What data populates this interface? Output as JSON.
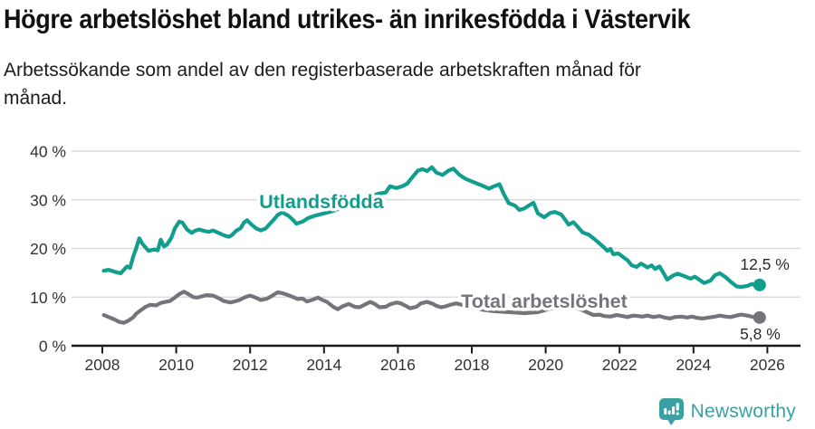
{
  "header": {
    "title": "Högre arbetslöshet bland utrikes- än inrikesfödda i Västervik",
    "subtitle_lines": [
      "Arbetssökande som andel av den registerbaserade arbetskraften månad för",
      "månad."
    ]
  },
  "chart_data": {
    "type": "line",
    "title": "Högre arbetslöshet bland utrikes- än inrikesfödda i Västervik",
    "subtitle": "Arbetssökande som andel av den registerbaserade arbetskraften månad för månad.",
    "unit": "%",
    "grid": true,
    "legend_position": "inline-labels",
    "xlim": [
      2007.2,
      2026.9
    ],
    "ylim": [
      0,
      40
    ],
    "x_ticks": [
      2008,
      2010,
      2012,
      2014,
      2016,
      2018,
      2020,
      2022,
      2024,
      2026
    ],
    "y_ticks": [
      0,
      10,
      20,
      30,
      40
    ],
    "y_tick_suffix": " %",
    "colors": {
      "axis": "#191919",
      "gridline": "#dcdcdc",
      "tick_text": "#333333",
      "annotation_text": "#2b2b2b"
    },
    "series": [
      {
        "name": "Utlandsfödda",
        "color": "#119e8d",
        "end_value_label": "12,5 %",
        "label_anchor": {
          "x": 2013.93,
          "y": 29.8
        },
        "points": [
          [
            2008.04,
            15.4
          ],
          [
            2008.17,
            15.6
          ],
          [
            2008.33,
            15.2
          ],
          [
            2008.5,
            14.9
          ],
          [
            2008.58,
            15.6
          ],
          [
            2008.67,
            16.3
          ],
          [
            2008.75,
            16.0
          ],
          [
            2008.83,
            18.2
          ],
          [
            2008.92,
            20.1
          ],
          [
            2009.0,
            22.1
          ],
          [
            2009.08,
            21.0
          ],
          [
            2009.25,
            19.5
          ],
          [
            2009.42,
            19.8
          ],
          [
            2009.5,
            19.6
          ],
          [
            2009.58,
            21.8
          ],
          [
            2009.67,
            20.4
          ],
          [
            2009.75,
            20.8
          ],
          [
            2009.87,
            22.2
          ],
          [
            2009.96,
            24.1
          ],
          [
            2010.08,
            25.5
          ],
          [
            2010.17,
            25.3
          ],
          [
            2010.29,
            23.9
          ],
          [
            2010.42,
            23.2
          ],
          [
            2010.5,
            23.6
          ],
          [
            2010.62,
            23.9
          ],
          [
            2010.75,
            23.6
          ],
          [
            2010.87,
            23.4
          ],
          [
            2011.0,
            23.7
          ],
          [
            2011.17,
            23.1
          ],
          [
            2011.29,
            22.7
          ],
          [
            2011.42,
            22.4
          ],
          [
            2011.5,
            22.7
          ],
          [
            2011.62,
            23.6
          ],
          [
            2011.75,
            24.2
          ],
          [
            2011.83,
            25.3
          ],
          [
            2011.92,
            25.8
          ],
          [
            2012.04,
            24.9
          ],
          [
            2012.17,
            24.1
          ],
          [
            2012.29,
            23.7
          ],
          [
            2012.42,
            24.1
          ],
          [
            2012.54,
            25.1
          ],
          [
            2012.65,
            26.0
          ],
          [
            2012.75,
            26.9
          ],
          [
            2012.87,
            27.4
          ],
          [
            2013.04,
            26.7
          ],
          [
            2013.17,
            25.8
          ],
          [
            2013.25,
            25.1
          ],
          [
            2013.42,
            25.5
          ],
          [
            2013.54,
            26.1
          ],
          [
            2013.62,
            26.4
          ],
          [
            2013.79,
            26.8
          ],
          [
            2014.0,
            27.2
          ],
          [
            2014.25,
            27.7
          ],
          [
            2014.5,
            28.5
          ],
          [
            2014.75,
            29.2
          ],
          [
            2015.0,
            30.0
          ],
          [
            2015.25,
            30.7
          ],
          [
            2015.5,
            31.3
          ],
          [
            2015.67,
            31.5
          ],
          [
            2015.79,
            32.8
          ],
          [
            2015.96,
            32.4
          ],
          [
            2016.12,
            32.8
          ],
          [
            2016.25,
            33.3
          ],
          [
            2016.42,
            34.9
          ],
          [
            2016.54,
            36.0
          ],
          [
            2016.67,
            36.3
          ],
          [
            2016.79,
            35.9
          ],
          [
            2016.92,
            36.7
          ],
          [
            2017.04,
            35.6
          ],
          [
            2017.21,
            35.1
          ],
          [
            2017.37,
            36.0
          ],
          [
            2017.5,
            36.4
          ],
          [
            2017.67,
            35.1
          ],
          [
            2017.83,
            34.3
          ],
          [
            2017.96,
            33.9
          ],
          [
            2018.12,
            33.4
          ],
          [
            2018.29,
            32.9
          ],
          [
            2018.46,
            32.3
          ],
          [
            2018.58,
            32.7
          ],
          [
            2018.75,
            33.2
          ],
          [
            2018.87,
            31.1
          ],
          [
            2019.0,
            29.3
          ],
          [
            2019.17,
            28.8
          ],
          [
            2019.29,
            27.9
          ],
          [
            2019.42,
            28.2
          ],
          [
            2019.54,
            28.8
          ],
          [
            2019.67,
            29.4
          ],
          [
            2019.79,
            27.2
          ],
          [
            2019.96,
            26.4
          ],
          [
            2020.12,
            27.3
          ],
          [
            2020.25,
            27.5
          ],
          [
            2020.42,
            27.0
          ],
          [
            2020.5,
            26.2
          ],
          [
            2020.62,
            24.9
          ],
          [
            2020.75,
            25.4
          ],
          [
            2020.87,
            24.4
          ],
          [
            2021.0,
            23.3
          ],
          [
            2021.17,
            22.8
          ],
          [
            2021.29,
            22.1
          ],
          [
            2021.46,
            21.0
          ],
          [
            2021.58,
            20.2
          ],
          [
            2021.67,
            19.5
          ],
          [
            2021.75,
            19.9
          ],
          [
            2021.83,
            18.8
          ],
          [
            2021.96,
            19.0
          ],
          [
            2022.08,
            18.3
          ],
          [
            2022.21,
            17.6
          ],
          [
            2022.33,
            16.5
          ],
          [
            2022.46,
            16.2
          ],
          [
            2022.58,
            16.9
          ],
          [
            2022.67,
            16.5
          ],
          [
            2022.75,
            16.1
          ],
          [
            2022.87,
            16.5
          ],
          [
            2022.96,
            15.8
          ],
          [
            2023.08,
            16.3
          ],
          [
            2023.17,
            15.2
          ],
          [
            2023.29,
            13.6
          ],
          [
            2023.46,
            14.5
          ],
          [
            2023.58,
            14.8
          ],
          [
            2023.75,
            14.3
          ],
          [
            2023.92,
            13.8
          ],
          [
            2024.04,
            14.2
          ],
          [
            2024.17,
            13.5
          ],
          [
            2024.29,
            12.9
          ],
          [
            2024.46,
            13.4
          ],
          [
            2024.58,
            14.5
          ],
          [
            2024.71,
            14.9
          ],
          [
            2024.87,
            14.1
          ],
          [
            2025.0,
            13.2
          ],
          [
            2025.17,
            12.2
          ],
          [
            2025.29,
            12.1
          ],
          [
            2025.46,
            12.3
          ],
          [
            2025.58,
            12.7
          ],
          [
            2025.67,
            12.4
          ],
          [
            2025.79,
            12.5
          ]
        ]
      },
      {
        "name": "Total arbetslöshet",
        "color": "#75747a",
        "end_value_label": "5,8 %",
        "label_anchor": {
          "x": 2019.96,
          "y": 9.3
        },
        "points": [
          [
            2008.04,
            6.3
          ],
          [
            2008.17,
            5.9
          ],
          [
            2008.33,
            5.4
          ],
          [
            2008.46,
            4.9
          ],
          [
            2008.58,
            4.7
          ],
          [
            2008.71,
            5.2
          ],
          [
            2008.83,
            5.8
          ],
          [
            2008.92,
            6.6
          ],
          [
            2009.04,
            7.3
          ],
          [
            2009.17,
            8.0
          ],
          [
            2009.29,
            8.4
          ],
          [
            2009.46,
            8.3
          ],
          [
            2009.58,
            8.8
          ],
          [
            2009.71,
            9.0
          ],
          [
            2009.83,
            9.2
          ],
          [
            2009.96,
            9.9
          ],
          [
            2010.08,
            10.6
          ],
          [
            2010.21,
            11.1
          ],
          [
            2010.33,
            10.6
          ],
          [
            2010.46,
            10.0
          ],
          [
            2010.58,
            9.9
          ],
          [
            2010.71,
            10.2
          ],
          [
            2010.83,
            10.4
          ],
          [
            2011.0,
            10.3
          ],
          [
            2011.17,
            9.7
          ],
          [
            2011.29,
            9.2
          ],
          [
            2011.46,
            8.9
          ],
          [
            2011.58,
            9.1
          ],
          [
            2011.71,
            9.4
          ],
          [
            2011.87,
            10.0
          ],
          [
            2012.0,
            10.3
          ],
          [
            2012.12,
            10.0
          ],
          [
            2012.29,
            9.4
          ],
          [
            2012.46,
            9.7
          ],
          [
            2012.58,
            10.2
          ],
          [
            2012.75,
            11.0
          ],
          [
            2012.87,
            10.8
          ],
          [
            2013.0,
            10.5
          ],
          [
            2013.17,
            10.0
          ],
          [
            2013.29,
            9.6
          ],
          [
            2013.42,
            9.7
          ],
          [
            2013.54,
            9.1
          ],
          [
            2013.71,
            9.5
          ],
          [
            2013.83,
            9.9
          ],
          [
            2013.96,
            9.4
          ],
          [
            2014.08,
            9.0
          ],
          [
            2014.25,
            8.0
          ],
          [
            2014.37,
            7.5
          ],
          [
            2014.5,
            8.1
          ],
          [
            2014.67,
            8.6
          ],
          [
            2014.83,
            8.0
          ],
          [
            2014.96,
            7.9
          ],
          [
            2015.12,
            8.5
          ],
          [
            2015.25,
            9.0
          ],
          [
            2015.37,
            8.6
          ],
          [
            2015.5,
            7.9
          ],
          [
            2015.67,
            8.0
          ],
          [
            2015.79,
            8.5
          ],
          [
            2015.96,
            8.9
          ],
          [
            2016.08,
            8.7
          ],
          [
            2016.21,
            8.2
          ],
          [
            2016.33,
            7.7
          ],
          [
            2016.5,
            8.0
          ],
          [
            2016.62,
            8.7
          ],
          [
            2016.79,
            9.0
          ],
          [
            2016.92,
            8.7
          ],
          [
            2017.04,
            8.2
          ],
          [
            2017.17,
            7.9
          ],
          [
            2017.29,
            8.1
          ],
          [
            2017.46,
            8.5
          ],
          [
            2017.58,
            8.7
          ],
          [
            2017.79,
            8.3
          ],
          [
            2018.0,
            7.9
          ],
          [
            2018.29,
            7.4
          ],
          [
            2018.58,
            7.1
          ],
          [
            2019.0,
            6.9
          ],
          [
            2019.42,
            6.7
          ],
          [
            2019.79,
            6.9
          ],
          [
            2020.21,
            7.8
          ],
          [
            2020.5,
            8.3
          ],
          [
            2020.79,
            7.9
          ],
          [
            2021.0,
            7.3
          ],
          [
            2021.29,
            6.3
          ],
          [
            2021.46,
            6.4
          ],
          [
            2021.58,
            6.1
          ],
          [
            2021.75,
            6.0
          ],
          [
            2021.92,
            6.3
          ],
          [
            2022.08,
            6.1
          ],
          [
            2022.21,
            5.9
          ],
          [
            2022.37,
            6.2
          ],
          [
            2022.5,
            6.1
          ],
          [
            2022.62,
            6.0
          ],
          [
            2022.75,
            6.2
          ],
          [
            2022.92,
            5.9
          ],
          [
            2023.08,
            6.1
          ],
          [
            2023.21,
            5.8
          ],
          [
            2023.37,
            5.6
          ],
          [
            2023.5,
            5.9
          ],
          [
            2023.67,
            6.0
          ],
          [
            2023.83,
            5.8
          ],
          [
            2023.96,
            6.0
          ],
          [
            2024.12,
            5.7
          ],
          [
            2024.25,
            5.6
          ],
          [
            2024.42,
            5.8
          ],
          [
            2024.58,
            6.0
          ],
          [
            2024.71,
            6.2
          ],
          [
            2024.87,
            6.0
          ],
          [
            2025.0,
            5.9
          ],
          [
            2025.17,
            6.2
          ],
          [
            2025.29,
            6.4
          ],
          [
            2025.46,
            6.2
          ],
          [
            2025.62,
            5.9
          ],
          [
            2025.79,
            5.8
          ]
        ]
      }
    ]
  },
  "footer": {
    "brand": "Newsworthy",
    "brand_color": "#3aa0a4"
  }
}
